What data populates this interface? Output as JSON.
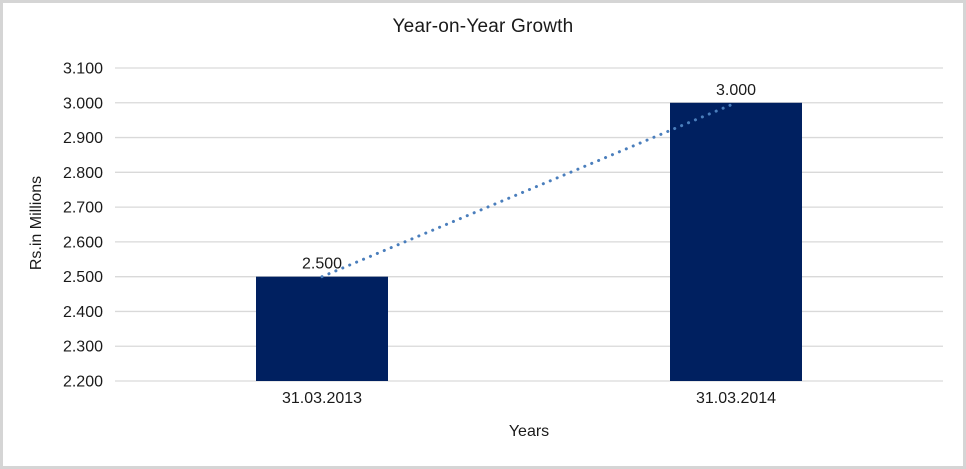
{
  "frame": {
    "border_color": "#d5d5d5",
    "background": "#ffffff"
  },
  "chart_data": {
    "type": "bar",
    "title": "Year-on-Year Growth",
    "categories": [
      "31.03.2013",
      "31.03.2014"
    ],
    "values": [
      2500,
      3000
    ],
    "data_labels": [
      "2.500",
      "3.000"
    ],
    "xlabel": "Years",
    "ylabel": "Rs.in Millions",
    "ylim": [
      2200,
      3100
    ],
    "ytick_step": 100,
    "ytick_labels": [
      "2.200",
      "2.300",
      "2.400",
      "2.500",
      "2.600",
      "2.700",
      "2.800",
      "2.900",
      "3.000",
      "3.100"
    ],
    "grid": true,
    "legend": "none",
    "bar_color": "#002060",
    "gridline_color": "#d9d9d9",
    "text_color": "#1a1a1a",
    "trendline": {
      "type": "linear",
      "style": "dotted",
      "color": "#4a7ebc",
      "from_value": 2500,
      "to_value": 3000
    }
  }
}
